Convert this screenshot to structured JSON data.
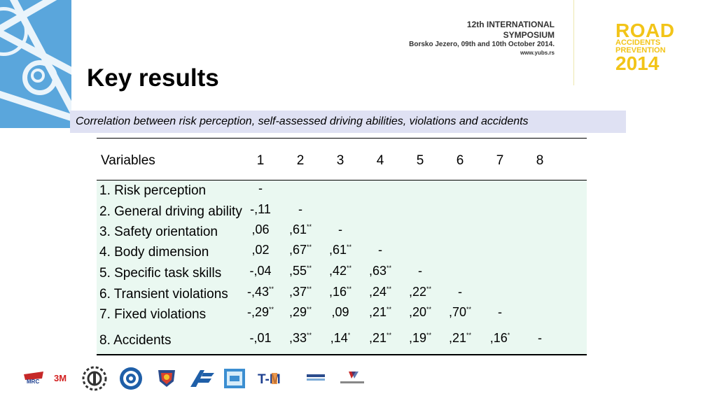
{
  "header": {
    "symposium_line1": "12th INTERNATIONAL",
    "symposium_line2": "SYMPOSIUM",
    "symposium_line3": "Borsko Jezero, 09th and 10th October 2014.",
    "symposium_url": "www.yubs.rs",
    "brand_line1": "ROAD",
    "brand_line2": "ACCIDENTS",
    "brand_line3": "PREVENTION",
    "brand_line4": "2014"
  },
  "title": "Key results",
  "caption": "Correlation between risk perception, self-assessed driving abilities, violations and accidents",
  "table": {
    "columns": [
      "Variables",
      "1",
      "2",
      "3",
      "4",
      "5",
      "6",
      "7",
      "8"
    ],
    "rows": [
      {
        "label": "1. Risk perception",
        "values": [
          "-",
          "",
          "",
          "",
          "",
          "",
          "",
          ""
        ]
      },
      {
        "label": "2. General driving ability",
        "values": [
          "-,11",
          "-",
          "",
          "",
          "",
          "",
          "",
          ""
        ]
      },
      {
        "label": "3. Safety orientation",
        "values": [
          ",06",
          ",61**",
          "-",
          "",
          "",
          "",
          "",
          ""
        ]
      },
      {
        "label": "4. Body dimension",
        "values": [
          ",02",
          ",67**",
          ",61**",
          "-",
          "",
          "",
          "",
          ""
        ]
      },
      {
        "label": "5. Specific task skills",
        "values": [
          "-,04",
          ",55**",
          ",42**",
          ",63**",
          "-",
          "",
          "",
          ""
        ]
      },
      {
        "label": "6. Transient violations",
        "values": [
          "-,43**",
          ",37**",
          ",16**",
          ",24**",
          ",22**",
          "-",
          "",
          ""
        ]
      },
      {
        "label": "7. Fixed violations",
        "values": [
          "-,29**",
          ",29**",
          ",09",
          ",21**",
          ",20**",
          ",70**",
          "-",
          ""
        ]
      },
      {
        "label": "8. Accidents",
        "values": [
          "-,01",
          ",33**",
          ",14*",
          ",21**",
          ",19**",
          ",21**",
          ",16*",
          "-"
        ]
      }
    ]
  },
  "colors": {
    "corner_blue": "#5aa6dc",
    "brand_yellow": "#f2c418",
    "caption_bg": "#dfe1f3",
    "table_body_bg": "#eaf8f1"
  },
  "sponsor_logos": [
    "mrc-logo",
    "3m-logo",
    "gear-logo",
    "circle-logo",
    "shield-logo",
    "ftc-logo",
    "stc-logo",
    "tm-logo",
    "small-logo-1",
    "small-logo-2"
  ],
  "sponsor_text": {
    "mrc": "MRC",
    "threem": "3M",
    "tm": "T-M"
  }
}
